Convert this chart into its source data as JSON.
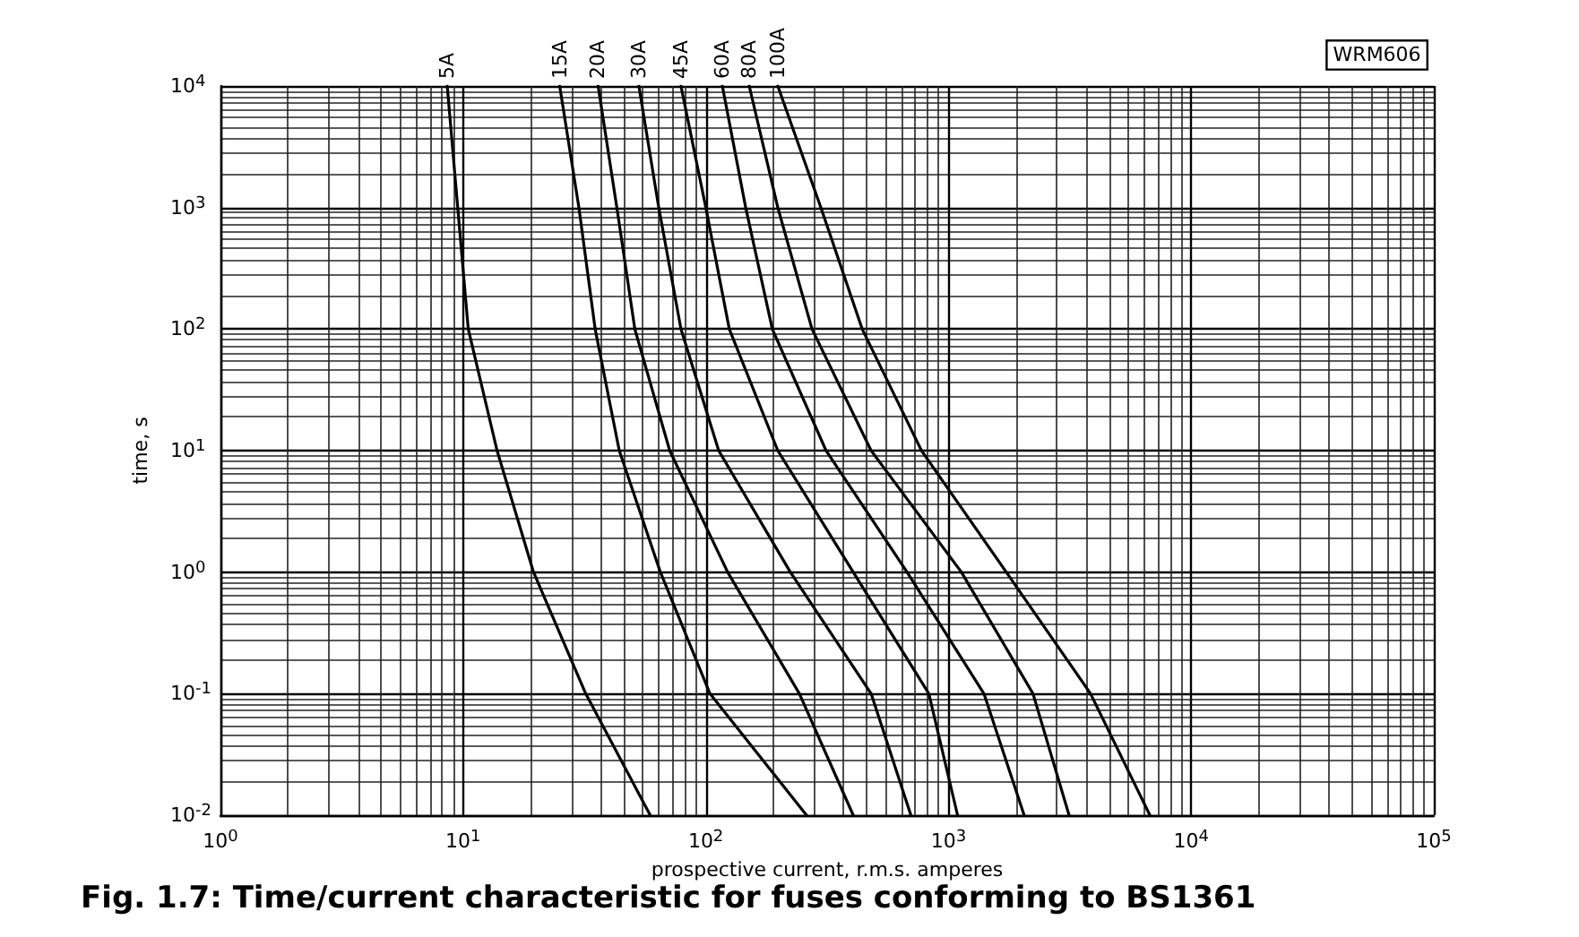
{
  "chart_data": {
    "type": "line",
    "title": "Fig. 1.7: Time/current characteristic for fuses conforming to BS1361",
    "xlabel": "prospective current, r.m.s. amperes",
    "ylabel": "time, s",
    "annotations": [
      "WRM606"
    ],
    "log": "xy",
    "grid": true,
    "legend": false,
    "marker": "none",
    "line_style": "solid",
    "xlim": [
      1,
      100000
    ],
    "ylim": [
      0.01,
      10000
    ],
    "xticks": [
      {
        "value": 1,
        "label": "10$^{0}$"
      },
      {
        "value": 10,
        "label": "10$^{1}$"
      },
      {
        "value": 100,
        "label": "10$^{2}$"
      },
      {
        "value": 1000,
        "label": "10$^{3}$"
      },
      {
        "value": 10000,
        "label": "10$^{4}$"
      },
      {
        "value": 100000,
        "label": "10$^{5}$"
      }
    ],
    "yticks": [
      {
        "value": 0.01,
        "label": "10$^{-2}$"
      },
      {
        "value": 0.1,
        "label": "10$^{-1}$"
      },
      {
        "value": 1,
        "label": "10$^{0}$"
      },
      {
        "value": 10,
        "label": "10$^{1}$"
      },
      {
        "value": 100,
        "label": "10$^{2}$"
      },
      {
        "value": 1000,
        "label": "10$^{3}$"
      },
      {
        "value": 10000,
        "label": "10$^{4}$"
      }
    ],
    "series": [
      {
        "name": "5A",
        "color": "#000000",
        "x": [
          8.6,
          9.5,
          10.5,
          13.8,
          19.5,
          32,
          59
        ],
        "values": [
          10000,
          1000,
          100,
          10,
          1,
          0.1,
          0.01
        ]
      },
      {
        "name": "15A",
        "color": "#000000",
        "x": [
          25,
          30,
          35,
          44,
          65,
          104,
          260
        ],
        "values": [
          10000,
          1000,
          100,
          10,
          1,
          0.1,
          0.01
        ]
      },
      {
        "name": "20A",
        "color": "#000000",
        "x": [
          36,
          43,
          51,
          71,
          123,
          243,
          405
        ],
        "values": [
          10000,
          1000,
          100,
          10,
          1,
          0.1,
          0.01
        ]
      },
      {
        "name": "30A",
        "color": "#000000",
        "x": [
          53,
          64,
          79,
          113,
          223,
          480,
          700
        ],
        "values": [
          10000,
          1000,
          100,
          10,
          1,
          0.1,
          0.01
        ]
      },
      {
        "name": "45A",
        "color": "#000000",
        "x": [
          79,
          100,
          125,
          198,
          405,
          830,
          1090
        ],
        "values": [
          10000,
          1000,
          100,
          10,
          1,
          0.1,
          0.01
        ]
      },
      {
        "name": "60A",
        "color": "#000000",
        "x": [
          117,
          146,
          188,
          313,
          675,
          1400,
          2050
        ],
        "values": [
          10000,
          1000,
          100,
          10,
          1,
          0.1,
          0.01
        ]
      },
      {
        "name": "80A",
        "color": "#000000",
        "x": [
          151,
          198,
          274,
          480,
          1130,
          2230,
          3140
        ],
        "values": [
          10000,
          1000,
          100,
          10,
          1,
          0.1,
          0.01
        ]
      },
      {
        "name": "100A",
        "color": "#000000",
        "x": [
          198,
          298,
          441,
          774,
          1730,
          3850,
          6760
        ],
        "values": [
          10000,
          1000,
          100,
          10,
          1,
          0.1,
          0.01
        ]
      }
    ]
  }
}
